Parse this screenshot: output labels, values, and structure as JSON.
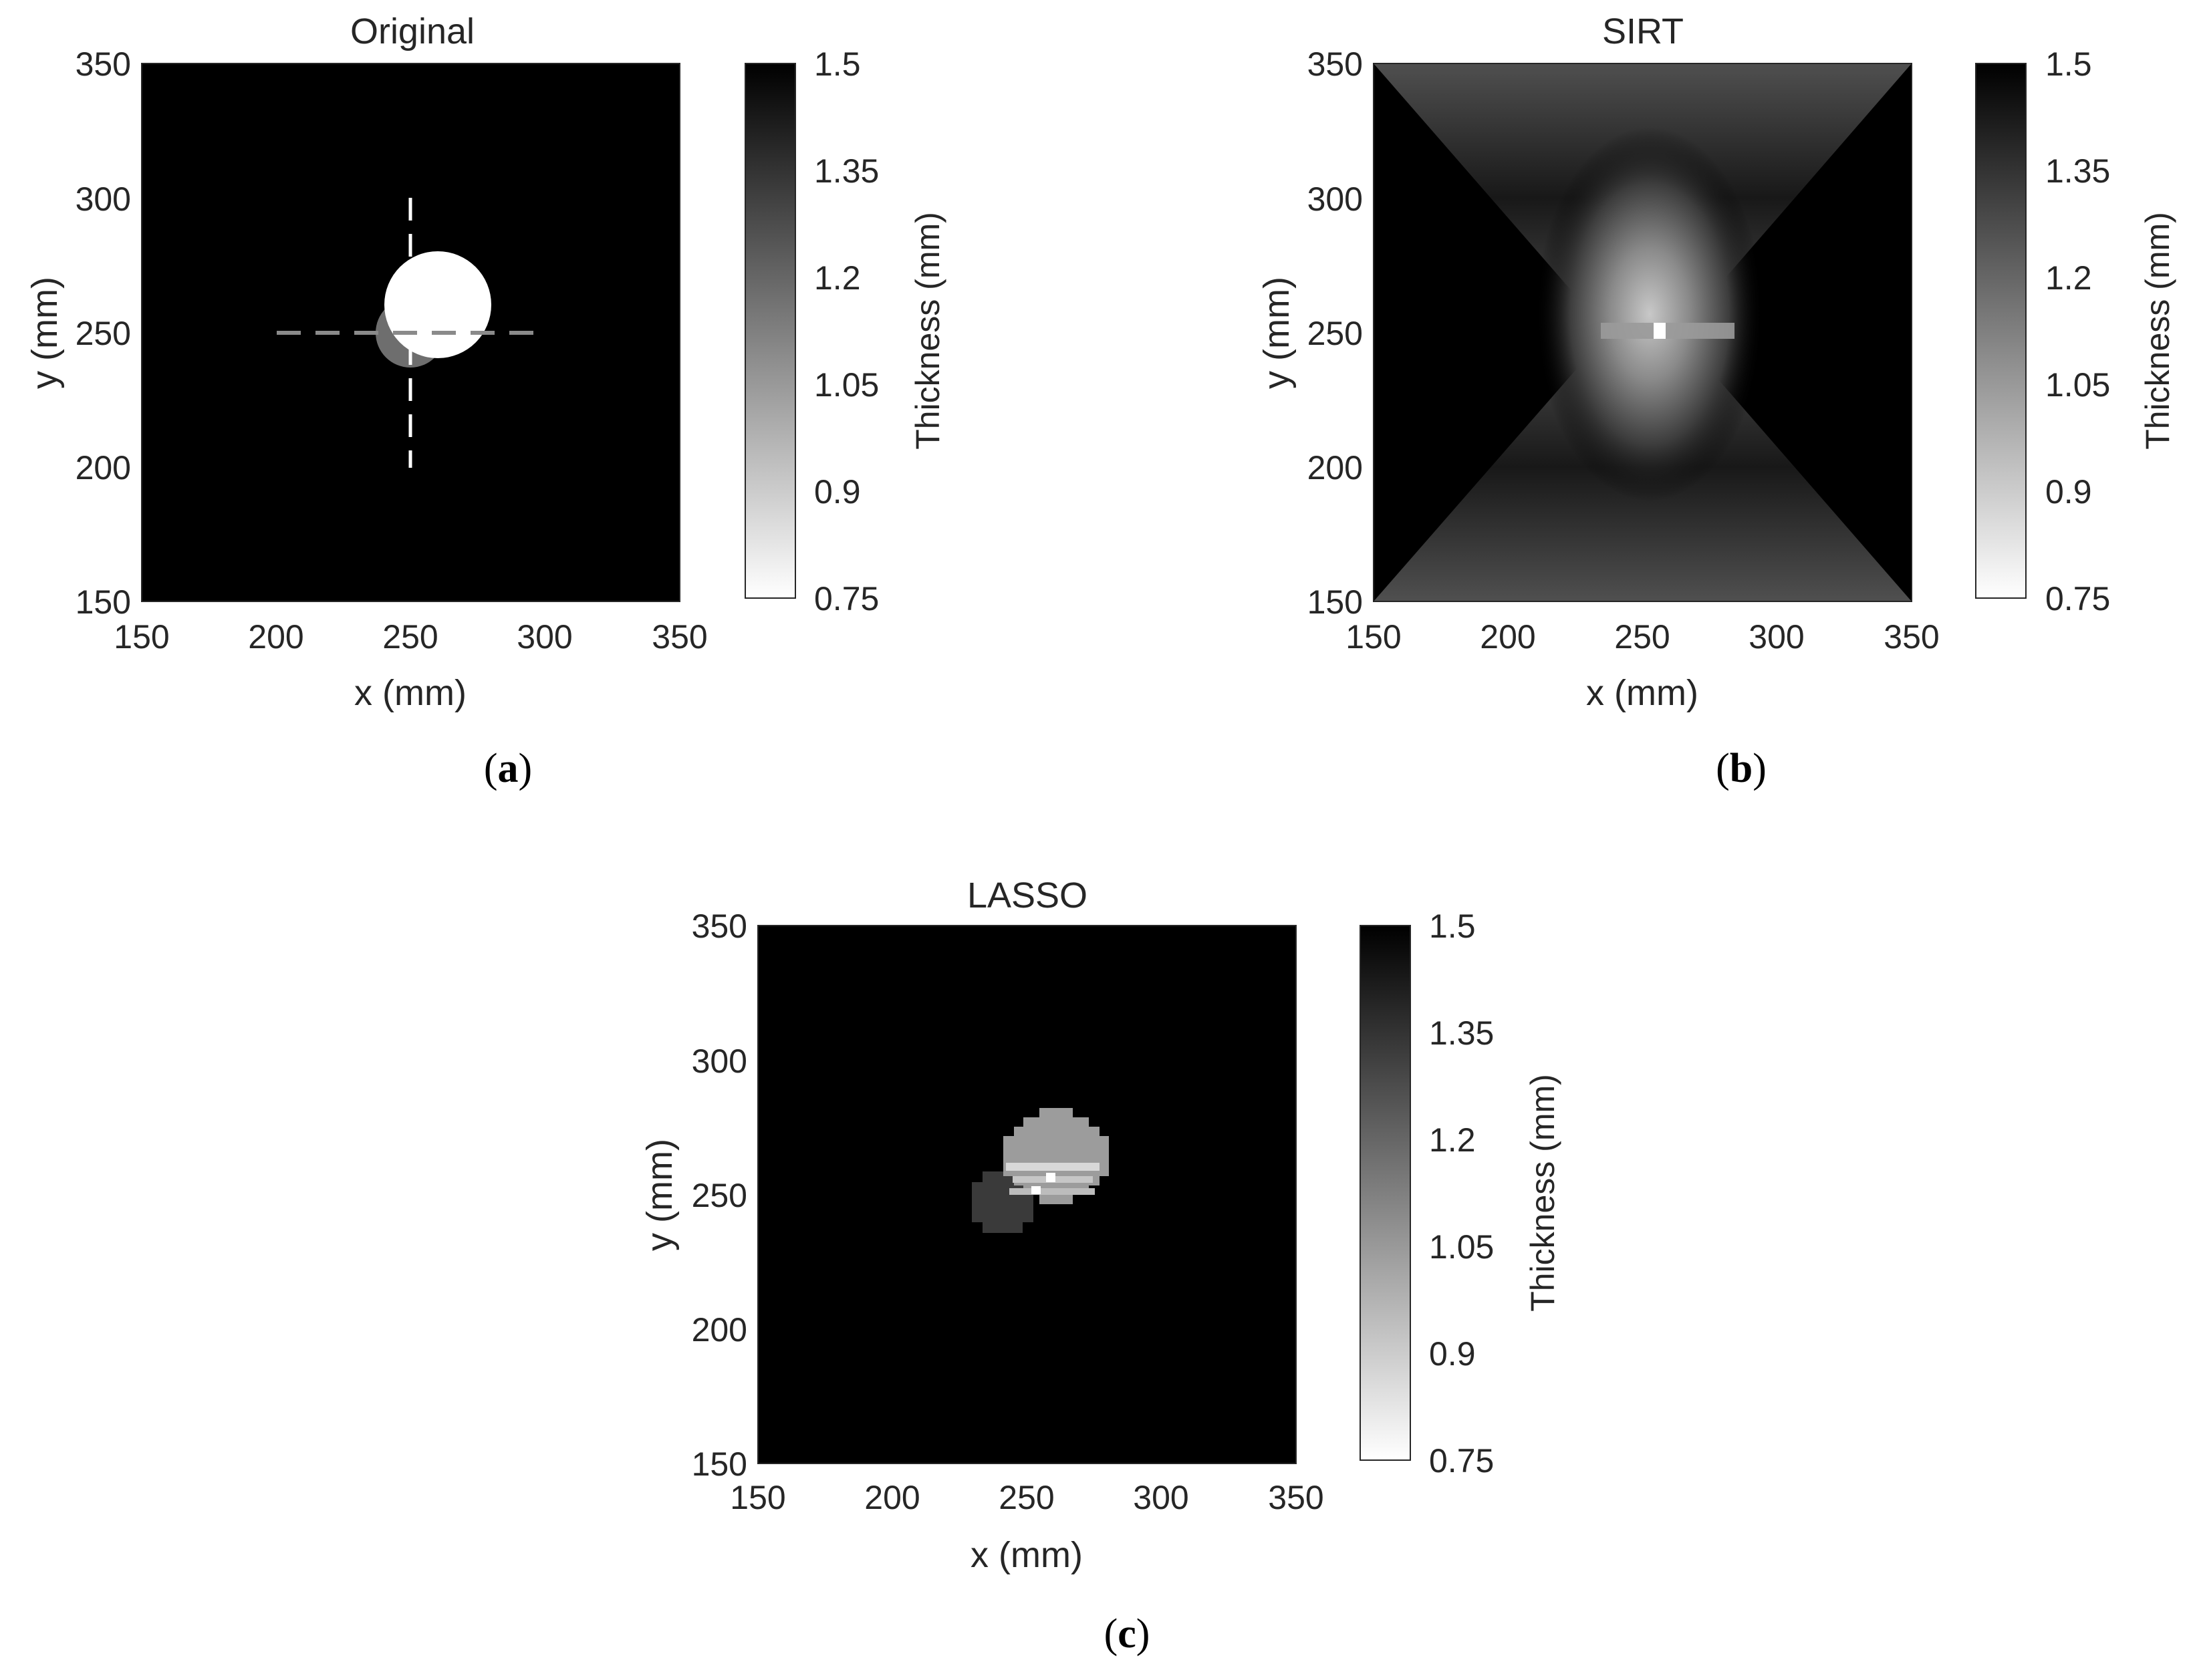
{
  "chart_data": [
    {
      "id": "a",
      "type": "heatmap",
      "title": "Original",
      "panel_label": "a",
      "xlabel": "x (mm)",
      "ylabel": "y (mm)",
      "xlim": [
        150,
        350
      ],
      "ylim": [
        150,
        350
      ],
      "xticks": [
        "150",
        "200",
        "250",
        "300",
        "350"
      ],
      "yticks": [
        "150",
        "200",
        "250",
        "300",
        "350"
      ],
      "colorbar": {
        "label": "Thickness (mm)",
        "range": [
          0.75,
          1.5
        ],
        "ticks": [
          "0.75",
          "0.9",
          "1.05",
          "1.2",
          "1.35",
          "1.5"
        ],
        "colormap": "gray, 0.75 = white, 1.5 = black"
      },
      "background_value": 1.5,
      "defects": [
        {
          "shape": "circle",
          "center": [
            250,
            250
          ],
          "radius": 13,
          "value": 1.1
        },
        {
          "shape": "circle",
          "center": [
            260,
            260
          ],
          "radius": 20,
          "value": 0.75
        }
      ],
      "reference_lines": [
        {
          "orientation": "horizontal",
          "y": 250,
          "x_range": [
            200,
            300
          ],
          "style": "dashed",
          "color": "#8a8a8a"
        },
        {
          "orientation": "vertical",
          "x": 250,
          "y_range": [
            200,
            300
          ],
          "style": "dashed",
          "color": "#ffffff"
        }
      ]
    },
    {
      "id": "b",
      "type": "heatmap",
      "title": "SIRT",
      "panel_label": "b",
      "xlabel": "x (mm)",
      "ylabel": "y (mm)",
      "xlim": [
        150,
        350
      ],
      "ylim": [
        150,
        350
      ],
      "xticks": [
        "150",
        "200",
        "250",
        "300",
        "350"
      ],
      "yticks": [
        "150",
        "200",
        "250",
        "300",
        "350"
      ],
      "colorbar": {
        "label": "Thickness (mm)",
        "range": [
          0.75,
          1.5
        ],
        "ticks": [
          "0.75",
          "0.9",
          "1.05",
          "1.2",
          "1.35",
          "1.5"
        ],
        "colormap": "gray, 0.75 = white, 1.5 = black"
      },
      "background_value": 1.5,
      "reconstruction": "hourglass-shaped blur centered near (260, 260), brightest value about 0.95"
    },
    {
      "id": "c",
      "type": "heatmap",
      "title": "LASSO",
      "panel_label": "c",
      "xlabel": "x (mm)",
      "ylabel": "y (mm)",
      "xlim": [
        150,
        350
      ],
      "ylim": [
        150,
        350
      ],
      "xticks": [
        "150",
        "200",
        "250",
        "300",
        "350"
      ],
      "yticks": [
        "150",
        "200",
        "250",
        "300",
        "350"
      ],
      "colorbar": {
        "label": "Thickness (mm)",
        "range": [
          0.75,
          1.5
        ],
        "ticks": [
          "0.75",
          "0.9",
          "1.05",
          "1.2",
          "1.35",
          "1.5"
        ],
        "colormap": "gray, 0.75 = white, 1.5 = black"
      },
      "background_value": 1.5,
      "defects": [
        {
          "shape": "circle",
          "center": [
            250,
            250
          ],
          "radius": 12,
          "value": 1.3
        },
        {
          "shape": "circle",
          "center": [
            260,
            262
          ],
          "radius": 19,
          "value": 1.05
        }
      ]
    }
  ]
}
